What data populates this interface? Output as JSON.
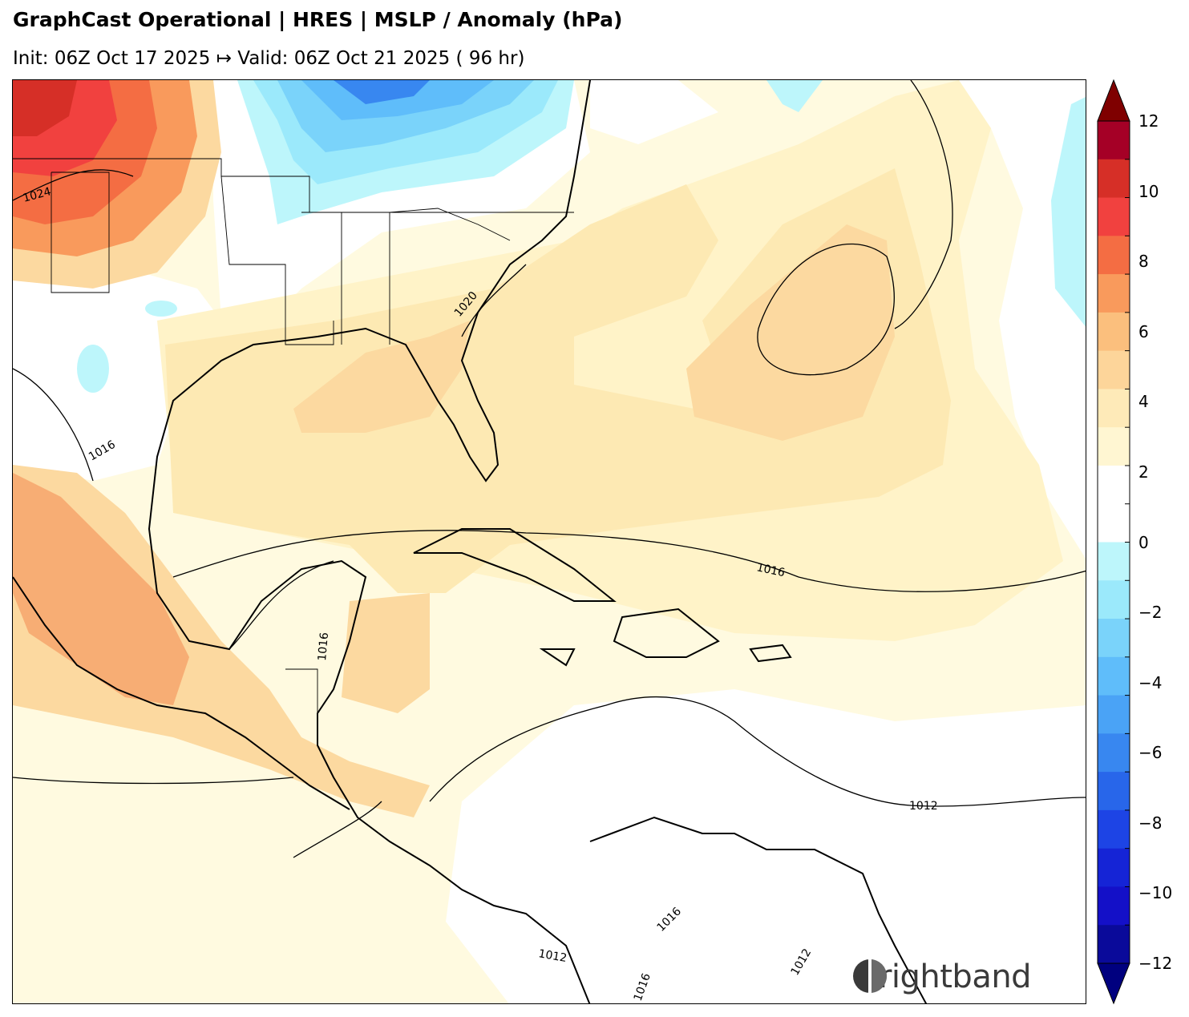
{
  "header": {
    "title": "GraphCast Operational | HRES | MSLP / Anomaly (hPa)",
    "subtitle": "Init: 06Z Oct 17 2025 ↦ Valid: 06Z Oct 21 2025 ( 96 hr)"
  },
  "map": {
    "region": "Gulf of Mexico / Caribbean / Western Atlantic",
    "isobar_labels": [
      "1024",
      "1020",
      "1016",
      "1016",
      "1016",
      "1016",
      "1012",
      "1012",
      "1012",
      "1016"
    ]
  },
  "colorbar": {
    "tick_labels": [
      "12",
      "10",
      "8",
      "6",
      "4",
      "2",
      "0",
      "−2",
      "−4",
      "−6",
      "−8",
      "−10",
      "−12"
    ],
    "colors": [
      "#a50026",
      "#d62f27",
      "#f1413f",
      "#f46d43",
      "#f99a5c",
      "#fbbf7d",
      "#fdd59a",
      "#feeab8",
      "#fff6d2",
      "#ffffff",
      "#ffffff",
      "#bdf6fb",
      "#9be9fb",
      "#7ad3fa",
      "#5fbdfa",
      "#4aa3f6",
      "#3887f0",
      "#2866ea",
      "#1d44e5",
      "#1524d6",
      "#1410c8",
      "#0a0a9a"
    ],
    "over_color": "#7f0000",
    "under_color": "#00007f"
  },
  "brand": {
    "name": "Brightband"
  }
}
